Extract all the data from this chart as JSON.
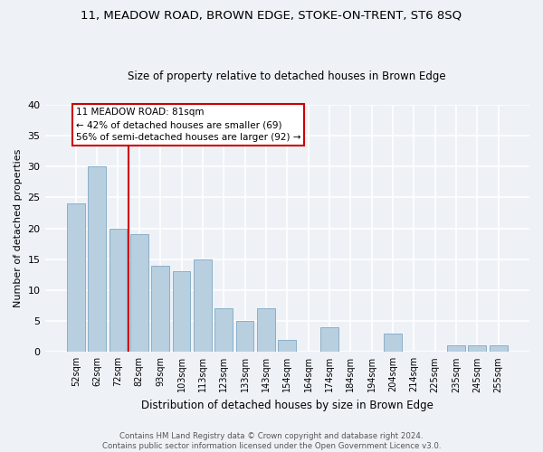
{
  "title": "11, MEADOW ROAD, BROWN EDGE, STOKE-ON-TRENT, ST6 8SQ",
  "subtitle": "Size of property relative to detached houses in Brown Edge",
  "xlabel": "Distribution of detached houses by size in Brown Edge",
  "ylabel": "Number of detached properties",
  "bar_labels": [
    "52sqm",
    "62sqm",
    "72sqm",
    "82sqm",
    "93sqm",
    "103sqm",
    "113sqm",
    "123sqm",
    "133sqm",
    "143sqm",
    "154sqm",
    "164sqm",
    "174sqm",
    "184sqm",
    "194sqm",
    "204sqm",
    "214sqm",
    "225sqm",
    "235sqm",
    "245sqm",
    "255sqm"
  ],
  "bar_values": [
    24,
    30,
    20,
    19,
    14,
    13,
    15,
    7,
    5,
    7,
    2,
    0,
    4,
    0,
    0,
    3,
    0,
    0,
    1,
    1,
    1
  ],
  "bar_color": "#b8cfe0",
  "bar_edge_color": "#8aafc8",
  "vline_color": "#cc0000",
  "vline_x_idx": 3,
  "ylim": [
    0,
    40
  ],
  "yticks": [
    0,
    5,
    10,
    15,
    20,
    25,
    30,
    35,
    40
  ],
  "annotation_title": "11 MEADOW ROAD: 81sqm",
  "annotation_line1": "← 42% of detached houses are smaller (69)",
  "annotation_line2": "56% of semi-detached houses are larger (92) →",
  "annotation_box_color": "#ffffff",
  "annotation_box_edge": "#cc0000",
  "footer1": "Contains HM Land Registry data © Crown copyright and database right 2024.",
  "footer2": "Contains public sector information licensed under the Open Government Licence v3.0.",
  "bg_color": "#eef2f7",
  "grid_color": "#ffffff",
  "title_fontsize": 9.5,
  "subtitle_fontsize": 8.5
}
